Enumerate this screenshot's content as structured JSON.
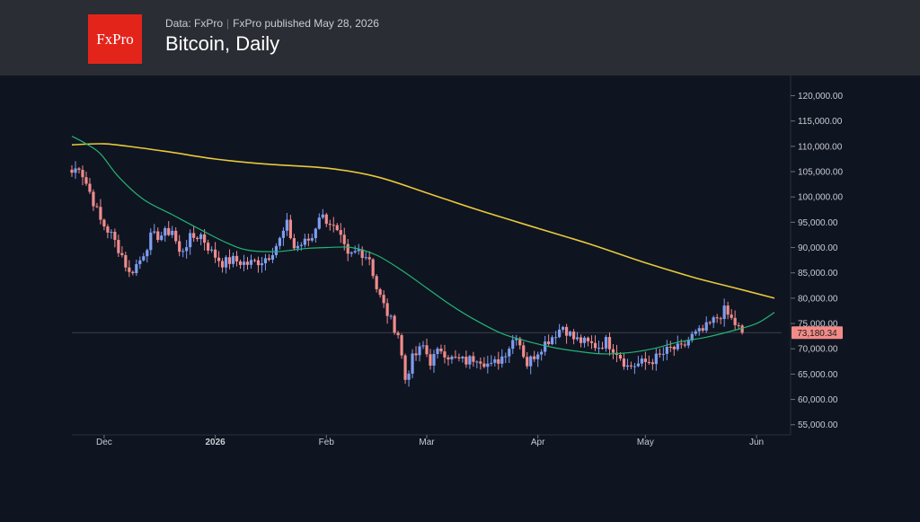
{
  "header": {
    "logo": "FxPro",
    "source_label": "Data: FxPro",
    "separator": "|",
    "published": "FxPro published May 28, 2026",
    "title": "Bitcoin, Daily"
  },
  "colors": {
    "background": "#0f1421",
    "header": "#2a2d33",
    "up_candle": "#7d9ef0",
    "down_candle": "#f08c8c",
    "sma_fast": "#22b573",
    "sma_slow": "#e8c93a",
    "price_badge": "#f28b87",
    "axis_text": "#c9ccd1"
  },
  "chart_data": {
    "type": "candlestick",
    "title": "Bitcoin, Daily",
    "y_ticks": [
      "55,000.00",
      "60,000.00",
      "65,000.00",
      "70,000.00",
      "75,000.00",
      "80,000.00",
      "85,000.00",
      "90,000.00",
      "95,000.00",
      "100,000.00",
      "105,000.00",
      "110,000.00",
      "115,000.00",
      "120,000.00"
    ],
    "y_tick_values": [
      55000,
      60000,
      65000,
      70000,
      75000,
      80000,
      85000,
      90000,
      95000,
      100000,
      105000,
      110000,
      115000,
      120000
    ],
    "x_ticks": [
      {
        "label": "Dec",
        "date": "2025-12-01",
        "bold": false
      },
      {
        "label": "2026",
        "date": "2026-01-01",
        "bold": true
      },
      {
        "label": "Feb",
        "date": "2026-02-01",
        "bold": false
      },
      {
        "label": "Mar",
        "date": "2026-03-01",
        "bold": false
      },
      {
        "label": "Apr",
        "date": "2026-04-01",
        "bold": false
      },
      {
        "label": "May",
        "date": "2026-05-01",
        "bold": false
      },
      {
        "label": "Jun",
        "date": "2026-06-01",
        "bold": false
      }
    ],
    "x_range": [
      "2025-11-22",
      "2026-06-08"
    ],
    "y_range": [
      53000,
      124000
    ],
    "last_price": 73180.34,
    "last_price_label": "73,180.34",
    "close_series": {
      "start_date": "2025-11-22",
      "end_date": "2026-05-28",
      "anchors": [
        [
          "2025-11-22",
          104800
        ],
        [
          "2025-11-24",
          106200
        ],
        [
          "2025-11-27",
          101000
        ],
        [
          "2025-11-30",
          95300
        ],
        [
          "2025-12-03",
          92500
        ],
        [
          "2025-12-06",
          88500
        ],
        [
          "2025-12-08",
          84800
        ],
        [
          "2025-12-11",
          87500
        ],
        [
          "2025-12-14",
          92000
        ],
        [
          "2025-12-17",
          92500
        ],
        [
          "2025-12-20",
          93500
        ],
        [
          "2025-12-22",
          88800
        ],
        [
          "2025-12-25",
          91800
        ],
        [
          "2025-12-28",
          92500
        ],
        [
          "2025-12-31",
          89000
        ],
        [
          "2026-01-03",
          87000
        ],
        [
          "2026-01-06",
          87500
        ],
        [
          "2026-01-10",
          86800
        ],
        [
          "2026-01-14",
          87500
        ],
        [
          "2026-01-16",
          88500
        ],
        [
          "2026-01-19",
          91500
        ],
        [
          "2026-01-21",
          94500
        ],
        [
          "2026-01-23",
          90000
        ],
        [
          "2026-01-26",
          91000
        ],
        [
          "2026-01-28",
          92000
        ],
        [
          "2026-01-30",
          96500
        ],
        [
          "2026-02-02",
          95000
        ],
        [
          "2026-02-05",
          91500
        ],
        [
          "2026-02-07",
          88000
        ],
        [
          "2026-02-10",
          89500
        ],
        [
          "2026-02-13",
          88000
        ],
        [
          "2026-02-15",
          82000
        ],
        [
          "2026-02-17",
          78500
        ],
        [
          "2026-02-19",
          75500
        ],
        [
          "2026-02-21",
          73000
        ],
        [
          "2026-02-23",
          64000
        ],
        [
          "2026-02-25",
          68000
        ],
        [
          "2026-02-28",
          70500
        ],
        [
          "2026-03-02",
          67500
        ],
        [
          "2026-03-05",
          70000
        ],
        [
          "2026-03-08",
          68000
        ],
        [
          "2026-03-12",
          67500
        ],
        [
          "2026-03-15",
          68500
        ],
        [
          "2026-03-19",
          66500
        ],
        [
          "2026-03-22",
          68500
        ],
        [
          "2026-03-24",
          70500
        ],
        [
          "2026-03-26",
          73000
        ],
        [
          "2026-03-29",
          67000
        ],
        [
          "2026-04-02",
          70500
        ],
        [
          "2026-04-05",
          72500
        ],
        [
          "2026-04-08",
          74500
        ],
        [
          "2026-04-11",
          72000
        ],
        [
          "2026-04-15",
          71000
        ],
        [
          "2026-04-18",
          70500
        ],
        [
          "2026-04-20",
          71500
        ],
        [
          "2026-04-23",
          69500
        ],
        [
          "2026-04-26",
          66500
        ],
        [
          "2026-04-29",
          67000
        ],
        [
          "2026-05-02",
          67500
        ],
        [
          "2026-05-05",
          68500
        ],
        [
          "2026-05-08",
          70000
        ],
        [
          "2026-05-11",
          70000
        ],
        [
          "2026-05-14",
          72500
        ],
        [
          "2026-05-17",
          73500
        ],
        [
          "2026-05-20",
          75500
        ],
        [
          "2026-05-23",
          77500
        ],
        [
          "2026-05-28",
          73180
        ]
      ]
    },
    "sma_fast": {
      "color": "#22b573",
      "points": [
        [
          "2025-11-22",
          112000
        ],
        [
          "2025-11-26",
          110500
        ],
        [
          "2025-11-30",
          108500
        ],
        [
          "2025-12-05",
          104000
        ],
        [
          "2025-12-12",
          99500
        ],
        [
          "2025-12-20",
          96500
        ],
        [
          "2025-12-28",
          93500
        ],
        [
          "2026-01-04",
          91000
        ],
        [
          "2026-01-10",
          89500
        ],
        [
          "2026-01-18",
          89200
        ],
        [
          "2026-01-26",
          89800
        ],
        [
          "2026-02-01",
          90000
        ],
        [
          "2026-02-08",
          90000
        ],
        [
          "2026-02-15",
          88500
        ],
        [
          "2026-02-22",
          85500
        ],
        [
          "2026-03-01",
          82000
        ],
        [
          "2026-03-08",
          78500
        ],
        [
          "2026-03-15",
          75500
        ],
        [
          "2026-03-22",
          73000
        ],
        [
          "2026-03-29",
          71500
        ],
        [
          "2026-04-05",
          70300
        ],
        [
          "2026-04-12",
          69500
        ],
        [
          "2026-04-19",
          69000
        ],
        [
          "2026-04-26",
          69200
        ],
        [
          "2026-05-03",
          70000
        ],
        [
          "2026-05-10",
          71300
        ],
        [
          "2026-05-18",
          72300
        ],
        [
          "2026-05-25",
          73500
        ],
        [
          "2026-06-01",
          75000
        ],
        [
          "2026-06-06",
          77200
        ]
      ]
    },
    "sma_slow": {
      "color": "#e8c93a",
      "points": [
        [
          "2025-11-22",
          110300
        ],
        [
          "2025-12-01",
          110500
        ],
        [
          "2025-12-10",
          109800
        ],
        [
          "2025-12-20",
          108800
        ],
        [
          "2026-01-01",
          107500
        ],
        [
          "2026-01-15",
          106500
        ],
        [
          "2026-02-01",
          105700
        ],
        [
          "2026-02-15",
          104000
        ],
        [
          "2026-03-01",
          100800
        ],
        [
          "2026-03-15",
          97500
        ],
        [
          "2026-04-01",
          93800
        ],
        [
          "2026-04-15",
          90800
        ],
        [
          "2026-05-01",
          87000
        ],
        [
          "2026-05-15",
          84000
        ],
        [
          "2026-05-25",
          82200
        ],
        [
          "2026-06-06",
          80000
        ]
      ]
    }
  }
}
